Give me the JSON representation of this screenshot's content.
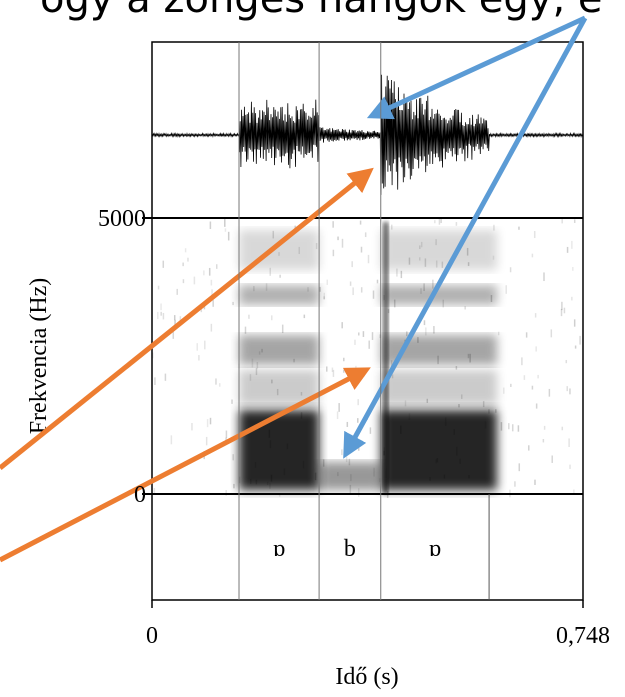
{
  "chart_data": {
    "type": "spectrogram",
    "caption": "ogy a zöngés hangok egy, e",
    "ylabel": "Frekvencia (Hz)",
    "xlabel": "Idő (s)",
    "ylim": [
      0,
      5000
    ],
    "yticks": [
      0,
      5000
    ],
    "xlim": [
      0,
      0.748
    ],
    "xticks": [
      0,
      {
        "value": 0.748,
        "label": "0,748"
      }
    ],
    "intervals": [
      {
        "label": "ɒ",
        "start": 0.151,
        "end": 0.29
      },
      {
        "label": "b",
        "start": 0.29,
        "end": 0.397
      },
      {
        "label": "ɒ",
        "start": 0.397,
        "end": 0.585
      }
    ]
  }
}
